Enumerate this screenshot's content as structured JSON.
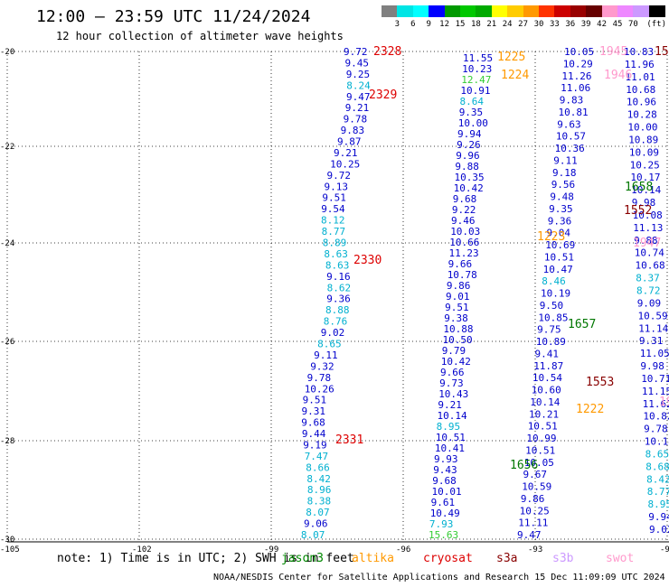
{
  "header": {
    "title": "12:00 – 23:59 UTC 11/24/2024",
    "subtitle": "12 hour collection of altimeter wave heights"
  },
  "legend": {
    "unit": "(ft)",
    "items": [
      {
        "label": "",
        "color": "#808080"
      },
      {
        "label": "3",
        "color": "#00e5e5"
      },
      {
        "label": "6",
        "color": "#00ffff"
      },
      {
        "label": "9",
        "color": "#0000ff"
      },
      {
        "label": "12",
        "color": "#009900"
      },
      {
        "label": "15",
        "color": "#00c800"
      },
      {
        "label": "18",
        "color": "#00aa00"
      },
      {
        "label": "21",
        "color": "#ffff00"
      },
      {
        "label": "24",
        "color": "#ffcc00"
      },
      {
        "label": "27",
        "color": "#ff9900"
      },
      {
        "label": "30",
        "color": "#ff3300"
      },
      {
        "label": "33",
        "color": "#cc0000"
      },
      {
        "label": "36",
        "color": "#990000"
      },
      {
        "label": "39",
        "color": "#660000"
      },
      {
        "label": "42",
        "color": "#ff99cc"
      },
      {
        "label": "45",
        "color": "#ee88ff"
      },
      {
        "label": "70",
        "color": "#cc99ff"
      },
      {
        "label": "",
        "color": "#000000"
      }
    ]
  },
  "axes": {
    "lon_ticks": [
      "-105",
      "-102",
      "-99",
      "-96",
      "-93",
      "-90"
    ],
    "lat_ticks": [
      "-20",
      "-22",
      "-24",
      "-26",
      "-28",
      "-30"
    ]
  },
  "tracks": [
    {
      "name": "t1",
      "color": "#0000cc",
      "values": [
        "9.72",
        "9.45",
        "9.25",
        "8.24",
        "9.47",
        "9.21",
        "9.78",
        "9.83",
        "9.87",
        "9.21",
        "10.25",
        "9.72",
        "9.13",
        "9.51",
        "9.54",
        "8.12",
        "8.77",
        "8.89",
        "8.63",
        "8.63",
        "9.16",
        "8.62",
        "9.36",
        "8.88",
        "8.76",
        "9.02",
        "8.65",
        "9.11",
        "9.32",
        "9.78",
        "10.26",
        "9.51",
        "9.31",
        "9.68",
        "9.44",
        "9.19",
        "7.47",
        "8.66",
        "8.42",
        "8.96",
        "8.38",
        "8.07",
        "9.06",
        "8.07"
      ]
    },
    {
      "name": "t2",
      "color": "#0000cc",
      "values": [
        "11.55",
        "10.23",
        "12.47",
        "10.91",
        "8.64",
        "9.35",
        "10.00",
        "9.94",
        "9.26",
        "9.96",
        "9.88",
        "10.35",
        "10.42",
        "9.68",
        "9.22",
        "9.46",
        "10.03",
        "10.66",
        "11.23",
        "9.66",
        "10.78",
        "9.86",
        "9.01",
        "9.51",
        "9.38",
        "10.88",
        "10.50",
        "9.79",
        "10.42",
        "9.66",
        "9.73",
        "10.43",
        "9.21",
        "10.14",
        "8.95",
        "10.51",
        "10.41",
        "9.93",
        "9.43",
        "9.68",
        "10.01",
        "9.61",
        "10.49",
        "7.93",
        "15.63"
      ]
    },
    {
      "name": "t3",
      "color": "#0000cc",
      "values": [
        "10.05",
        "10.29",
        "11.26",
        "11.06",
        "9.83",
        "10.81",
        "9.63",
        "10.57",
        "10.36",
        "9.11",
        "9.18",
        "9.56",
        "9.48",
        "9.35",
        "9.36",
        "9.04",
        "10.69",
        "10.51",
        "10.47",
        "8.46",
        "10.19",
        "9.50",
        "10.85",
        "9.75",
        "10.89",
        "9.41",
        "11.87",
        "10.54",
        "10.60",
        "10.14",
        "10.21",
        "10.51",
        "10.99",
        "10.51",
        "10.05",
        "9.67",
        "10.59",
        "9.86",
        "10.25",
        "11.11",
        "9.47"
      ]
    },
    {
      "name": "t4",
      "color": "#0000cc",
      "values": [
        "10.83",
        "11.96",
        "11.01",
        "10.68",
        "10.96",
        "10.28",
        "10.00",
        "10.89",
        "10.09",
        "10.25",
        "10.17",
        "10.14",
        "9.98",
        "10.08",
        "11.13",
        "9.88",
        "10.74",
        "10.68",
        "8.37",
        "8.72",
        "9.09",
        "10.59",
        "11.14",
        "9.31",
        "11.05",
        "9.98",
        "10.71",
        "11.15",
        "11.62",
        "10.82",
        "9.78",
        "10.14",
        "8.65",
        "8.68",
        "8.42",
        "8.77",
        "8.95",
        "9.94",
        "9.02"
      ]
    }
  ],
  "stamps": [
    {
      "text": "2328",
      "color": "#dd0000"
    },
    {
      "text": "2329",
      "color": "#dd0000"
    },
    {
      "text": "2330",
      "color": "#dd0000"
    },
    {
      "text": "2331",
      "color": "#dd0000"
    },
    {
      "text": "1225",
      "color": "#ff9900"
    },
    {
      "text": "1224",
      "color": "#ff9900"
    },
    {
      "text": "1223",
      "color": "#ff9900"
    },
    {
      "text": "1222",
      "color": "#ff9900"
    },
    {
      "text": "1945",
      "color": "#ff99cc"
    },
    {
      "text": "1946",
      "color": "#ff99cc"
    },
    {
      "text": "1947",
      "color": "#ff99cc"
    },
    {
      "text": "1658",
      "color": "#007700"
    },
    {
      "text": "1657",
      "color": "#007700"
    },
    {
      "text": "1656",
      "color": "#007700"
    },
    {
      "text": "1552",
      "color": "#880000"
    },
    {
      "text": "1553",
      "color": "#880000"
    },
    {
      "text": "15",
      "color": "#880000"
    },
    {
      "text": "19",
      "color": "#ff99cc"
    }
  ],
  "footer": {
    "note": "note: 1) Time is in UTC; 2) SWH is in feet",
    "satellites": [
      {
        "name": "jason3",
        "color": "#008800"
      },
      {
        "name": "altika",
        "color": "#ff9900"
      },
      {
        "name": "cryosat",
        "color": "#dd0000"
      },
      {
        "name": "s3a",
        "color": "#880000"
      },
      {
        "name": "s3b",
        "color": "#cc99ff"
      },
      {
        "name": "swot",
        "color": "#ff99cc"
      }
    ],
    "credit": "NOAA/NESDIS Center for Satellite Applications and Research    15 Dec 11:09:09 UTC 2024"
  }
}
